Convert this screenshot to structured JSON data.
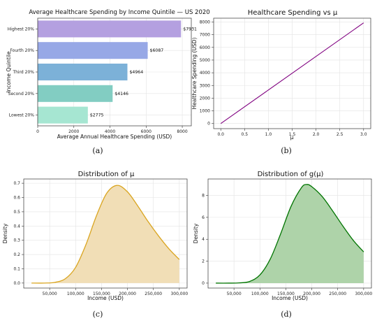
{
  "captions": [
    "(a)",
    "(b)",
    "(c)",
    "(d)"
  ],
  "chart_data": [
    {
      "type": "bar",
      "orientation": "horizontal",
      "title": "Average Healthcare Spending by Income Quintile — US 2020",
      "xlabel": "Average Annual Healthcare Spending (USD)",
      "ylabel": "Income Quintile",
      "categories": [
        "Highest 20%",
        "Fourth 20%",
        "Third 20%",
        "Second 20%",
        "Lowest 20%"
      ],
      "values": [
        7931,
        6087,
        4964,
        4146,
        2775
      ],
      "value_labels": [
        "$7931",
        "$6087",
        "$4964",
        "$4146",
        "$2775"
      ],
      "xlim": [
        0,
        8500
      ],
      "xticks": [
        0,
        2000,
        4000,
        6000,
        8000
      ],
      "colors": [
        "#b4a0e0",
        "#97a8e6",
        "#7cb1d8",
        "#82cdc2",
        "#a6e6d2"
      ],
      "grid": true
    },
    {
      "type": "line",
      "title": "Healthcare Spending vs μ",
      "xlabel": "μ",
      "ylabel": "Healthcare Spending (USD)",
      "x": [
        0.0,
        3.0
      ],
      "y": [
        0,
        7931
      ],
      "xlim": [
        -0.15,
        3.15
      ],
      "ylim": [
        -400,
        8300
      ],
      "xticks": [
        0.0,
        0.5,
        1.0,
        1.5,
        2.0,
        2.5,
        3.0
      ],
      "yticks": [
        0,
        1000,
        2000,
        3000,
        4000,
        5000,
        6000,
        7000,
        8000
      ],
      "color": "#800080",
      "grid": true
    },
    {
      "type": "area",
      "title": "Distribution of μ",
      "xlabel": "Income (USD)",
      "ylabel": "Density",
      "x": [
        15000,
        40000,
        60000,
        80000,
        100000,
        120000,
        140000,
        160000,
        180000,
        200000,
        220000,
        240000,
        260000,
        280000,
        300000
      ],
      "y": [
        0.0,
        0.0,
        0.005,
        0.03,
        0.11,
        0.27,
        0.47,
        0.63,
        0.685,
        0.64,
        0.54,
        0.43,
        0.33,
        0.24,
        0.165
      ],
      "xlim": [
        0,
        315000
      ],
      "ylim": [
        -0.035,
        0.73
      ],
      "xticks": [
        50000,
        100000,
        150000,
        200000,
        250000,
        300000
      ],
      "xtick_labels": [
        "50,000",
        "100,000",
        "150,000",
        "200,000",
        "250,000",
        "300,000"
      ],
      "yticks": [
        0.0,
        0.1,
        0.2,
        0.3,
        0.4,
        0.5,
        0.6,
        0.7
      ],
      "ytick_labels": [
        "0.0",
        "0.1",
        "0.2",
        "0.3",
        "0.4",
        "0.5",
        "0.6",
        "0.7"
      ],
      "color": "#daa520",
      "fill": "#f1deb6",
      "grid": true
    },
    {
      "type": "area",
      "title": "Distribution of g(μ)",
      "xlabel": "Income (USD)",
      "ylabel": "Density",
      "x": [
        15000,
        40000,
        60000,
        80000,
        100000,
        120000,
        140000,
        160000,
        180000,
        190000,
        200000,
        220000,
        240000,
        260000,
        280000,
        300000
      ],
      "y": [
        0.0,
        0.0,
        0.02,
        0.15,
        0.75,
        2.2,
        4.5,
        7.0,
        8.7,
        9.0,
        8.8,
        7.9,
        6.6,
        5.2,
        3.9,
        2.85
      ],
      "xlim": [
        0,
        315000
      ],
      "ylim": [
        -0.45,
        9.5
      ],
      "xticks": [
        50000,
        100000,
        150000,
        200000,
        250000,
        300000
      ],
      "xtick_labels": [
        "50,000",
        "100,000",
        "150,000",
        "200,000",
        "250,000",
        "300,000"
      ],
      "yticks": [
        0,
        2,
        4,
        6,
        8
      ],
      "ytick_labels": [
        "0",
        "2",
        "4",
        "6",
        "8"
      ],
      "color": "#007400",
      "fill": "#aed3a9",
      "grid": true
    }
  ]
}
